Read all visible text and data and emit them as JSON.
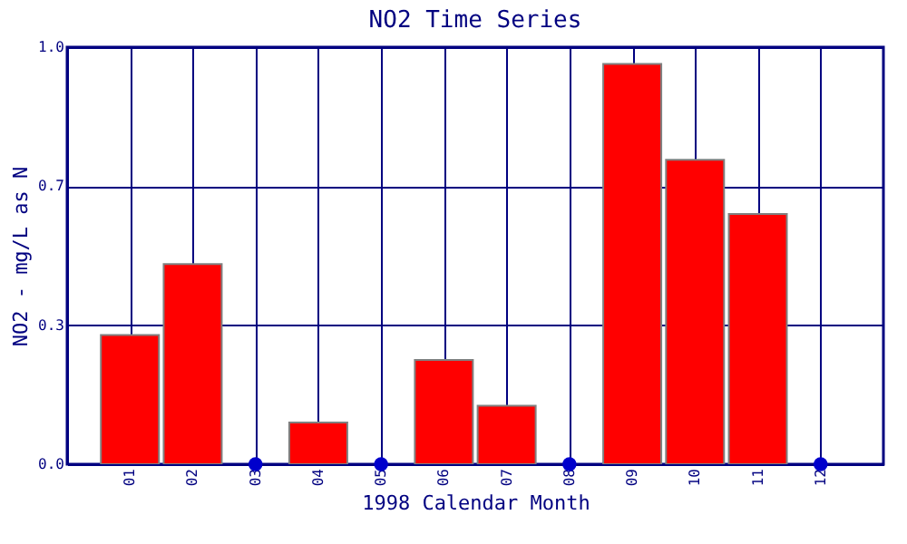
{
  "chart_data": {
    "type": "bar",
    "title": "NO2 Time Series",
    "xlabel": "1998 Calendar Month",
    "ylabel": "NO2 - mg/L as N",
    "categories": [
      "01",
      "02",
      "03",
      "04",
      "05",
      "06",
      "07",
      "08",
      "09",
      "10",
      "11",
      "12"
    ],
    "series": [
      {
        "color": "#ff0000",
        "values": [
          0.31,
          0.48,
          null,
          0.1,
          null,
          0.25,
          0.14,
          null,
          0.96,
          0.73,
          0.6,
          null
        ]
      },
      {
        "type": "scatter",
        "color": "#0000cc",
        "marker": "circle",
        "x": [
          "03",
          "05",
          "08",
          "12"
        ],
        "values": [
          0,
          0,
          0,
          0
        ]
      }
    ],
    "ylim": [
      0,
      1.0
    ],
    "yticks": [
      {
        "value": 0,
        "label": "0.0"
      },
      {
        "value": 0.333,
        "label": "0.3"
      },
      {
        "value": 0.667,
        "label": "0.7"
      },
      {
        "value": 1,
        "label": "1.0"
      }
    ],
    "grid": true
  }
}
